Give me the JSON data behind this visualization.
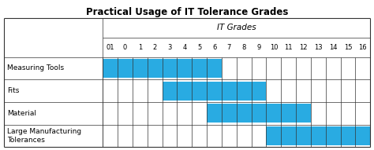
{
  "title": "Practical Usage of IT Tolerance Grades",
  "col_header": "IT Grades",
  "grades": [
    "01",
    "0",
    "1",
    "2",
    "3",
    "4",
    "5",
    "6",
    "7",
    "8",
    "9",
    "10",
    "11",
    "12",
    "13",
    "14",
    "15",
    "16"
  ],
  "rows": [
    {
      "label": "Measuring Tools",
      "start": 0,
      "end": 8
    },
    {
      "label": "Fits",
      "start": 4,
      "end": 11
    },
    {
      "label": "Material",
      "start": 7,
      "end": 14
    },
    {
      "label": "Large Manufacturing\nTolerances",
      "start": 11,
      "end": 18
    }
  ],
  "bar_color": "#29ABE2",
  "grid_color": "#333333",
  "bg_color": "#ffffff",
  "title_fontsize": 8.5,
  "header_fontsize": 7.5,
  "grade_fontsize": 6.0,
  "label_fontsize": 6.5
}
